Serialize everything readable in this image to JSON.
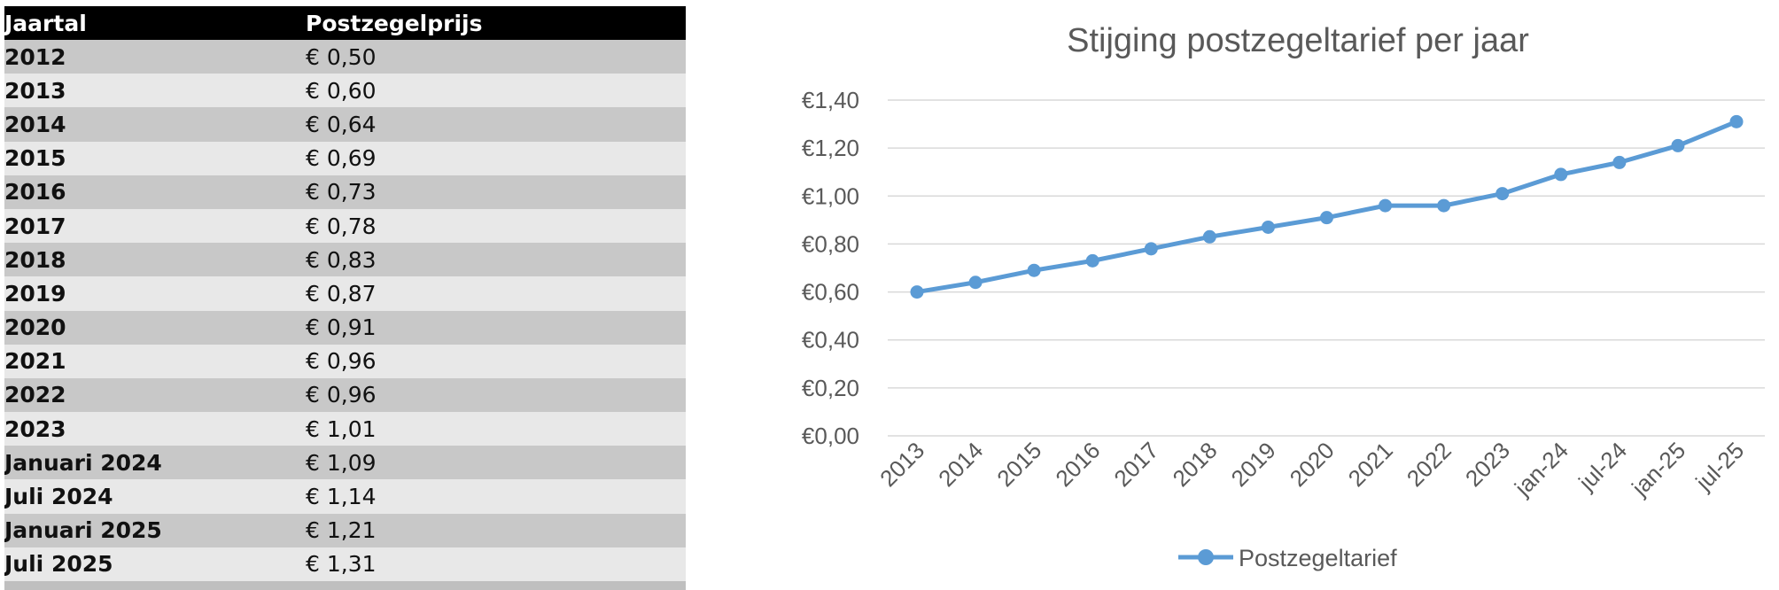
{
  "table": {
    "columns": [
      "Jaartal",
      "Postzegelprijs"
    ],
    "rows": [
      {
        "label": "2012",
        "price": "€ 0,50"
      },
      {
        "label": "2013",
        "price": "€ 0,60"
      },
      {
        "label": "2014",
        "price": "€ 0,64"
      },
      {
        "label": "2015",
        "price": "€ 0,69"
      },
      {
        "label": "2016",
        "price": "€ 0,73"
      },
      {
        "label": "2017",
        "price": "€ 0,78"
      },
      {
        "label": "2018",
        "price": "€ 0,83"
      },
      {
        "label": "2019",
        "price": "€ 0,87"
      },
      {
        "label": "2020",
        "price": "€ 0,91"
      },
      {
        "label": "2021",
        "price": "€ 0,96"
      },
      {
        "label": "2022",
        "price": "€ 0,96"
      },
      {
        "label": "2023",
        "price": "€ 1,01"
      },
      {
        "label": "Januari 2024",
        "price": "€ 1,09"
      },
      {
        "label": "Juli 2024",
        "price": "€ 1,14"
      },
      {
        "label": "Januari 2025",
        "price": "€ 1,21"
      },
      {
        "label": "Juli 2025",
        "price": "€ 1,31"
      }
    ]
  },
  "chart_data": {
    "type": "line",
    "title": "Stijging postzegeltarief per jaar",
    "categories": [
      "2013",
      "2014",
      "2015",
      "2016",
      "2017",
      "2018",
      "2019",
      "2020",
      "2021",
      "2022",
      "2023",
      "jan-24",
      "jul-24",
      "jan-25",
      "jul-25"
    ],
    "series": [
      {
        "name": "Postzegeltarief",
        "values": [
          0.6,
          0.64,
          0.69,
          0.73,
          0.78,
          0.83,
          0.87,
          0.91,
          0.96,
          0.96,
          1.01,
          1.09,
          1.14,
          1.21,
          1.31
        ]
      }
    ],
    "xlabel": "",
    "ylabel": "",
    "ylim": [
      0,
      1.4
    ],
    "ytick_step": 0.2,
    "ytick_labels": [
      "€0,00",
      "€0,20",
      "€0,40",
      "€0,60",
      "€0,80",
      "€1,00",
      "€1,20",
      "€1,40"
    ],
    "grid": true,
    "legend_position": "bottom",
    "line_color": "#5B9BD5",
    "grid_color": "#d9d9d9",
    "text_color": "#595959"
  }
}
